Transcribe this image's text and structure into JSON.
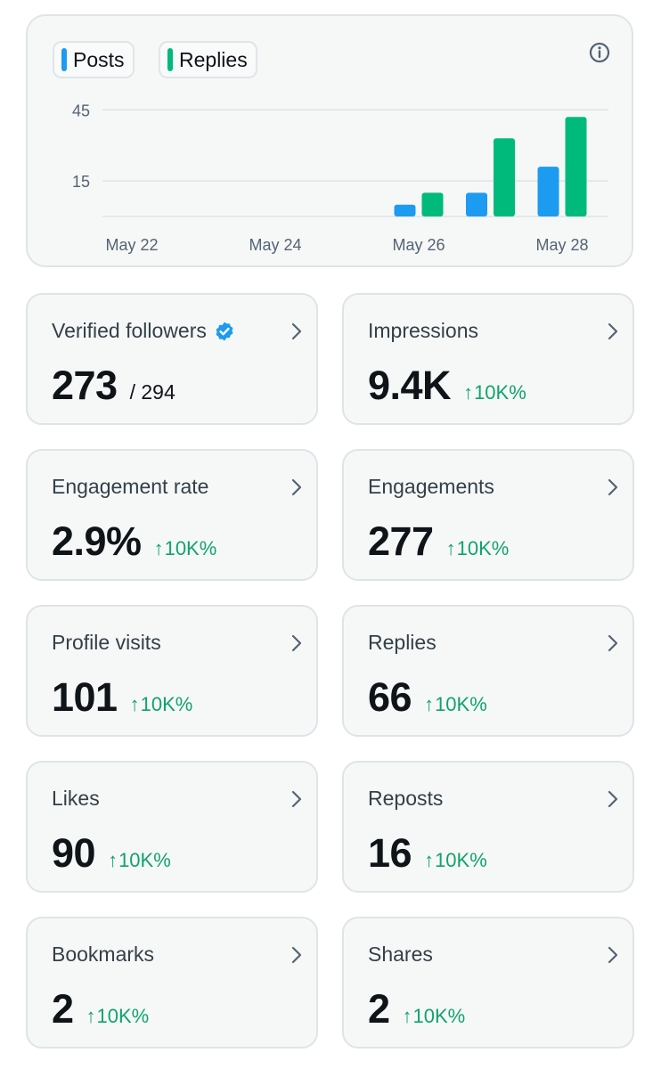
{
  "chart": {
    "legend": [
      {
        "label": "Posts",
        "color": "#1d9bf0"
      },
      {
        "label": "Replies",
        "color": "#00ba7c"
      }
    ],
    "info_icon": "info-circle-icon"
  },
  "chart_data": {
    "type": "bar",
    "x_tick_labels": [
      "May 22",
      "May 24",
      "May 26",
      "May 28"
    ],
    "y_tick_labels": [
      "45",
      "15"
    ],
    "y_ticks": [
      45,
      15
    ],
    "ylim": [
      0,
      50
    ],
    "grid": true,
    "legend_position": "top-left",
    "categories": [
      "May 22",
      "May 23",
      "May 24",
      "May 25",
      "May 26",
      "May 27",
      "May 28"
    ],
    "series": [
      {
        "name": "Posts",
        "color": "#1d9bf0",
        "values": [
          0,
          0,
          0,
          0,
          5,
          10,
          21
        ]
      },
      {
        "name": "Replies",
        "color": "#00ba7c",
        "values": [
          0,
          0,
          0,
          0,
          10,
          33,
          42
        ]
      }
    ]
  },
  "stats": [
    {
      "label": "Verified followers",
      "value": "273",
      "total": "/ 294",
      "verified": true,
      "icon": "verified-badge-icon"
    },
    {
      "label": "Impressions",
      "value": "9.4K",
      "change": "10K%"
    },
    {
      "label": "Engagement rate",
      "value": "2.9%",
      "change": "10K%"
    },
    {
      "label": "Engagements",
      "value": "277",
      "change": "10K%"
    },
    {
      "label": "Profile visits",
      "value": "101",
      "change": "10K%"
    },
    {
      "label": "Replies",
      "value": "66",
      "change": "10K%"
    },
    {
      "label": "Likes",
      "value": "90",
      "change": "10K%"
    },
    {
      "label": "Reposts",
      "value": "16",
      "change": "10K%"
    },
    {
      "label": "Bookmarks",
      "value": "2",
      "change": "10K%"
    },
    {
      "label": "Shares",
      "value": "2",
      "change": "10K%"
    }
  ],
  "arrow_glyph": "↑"
}
